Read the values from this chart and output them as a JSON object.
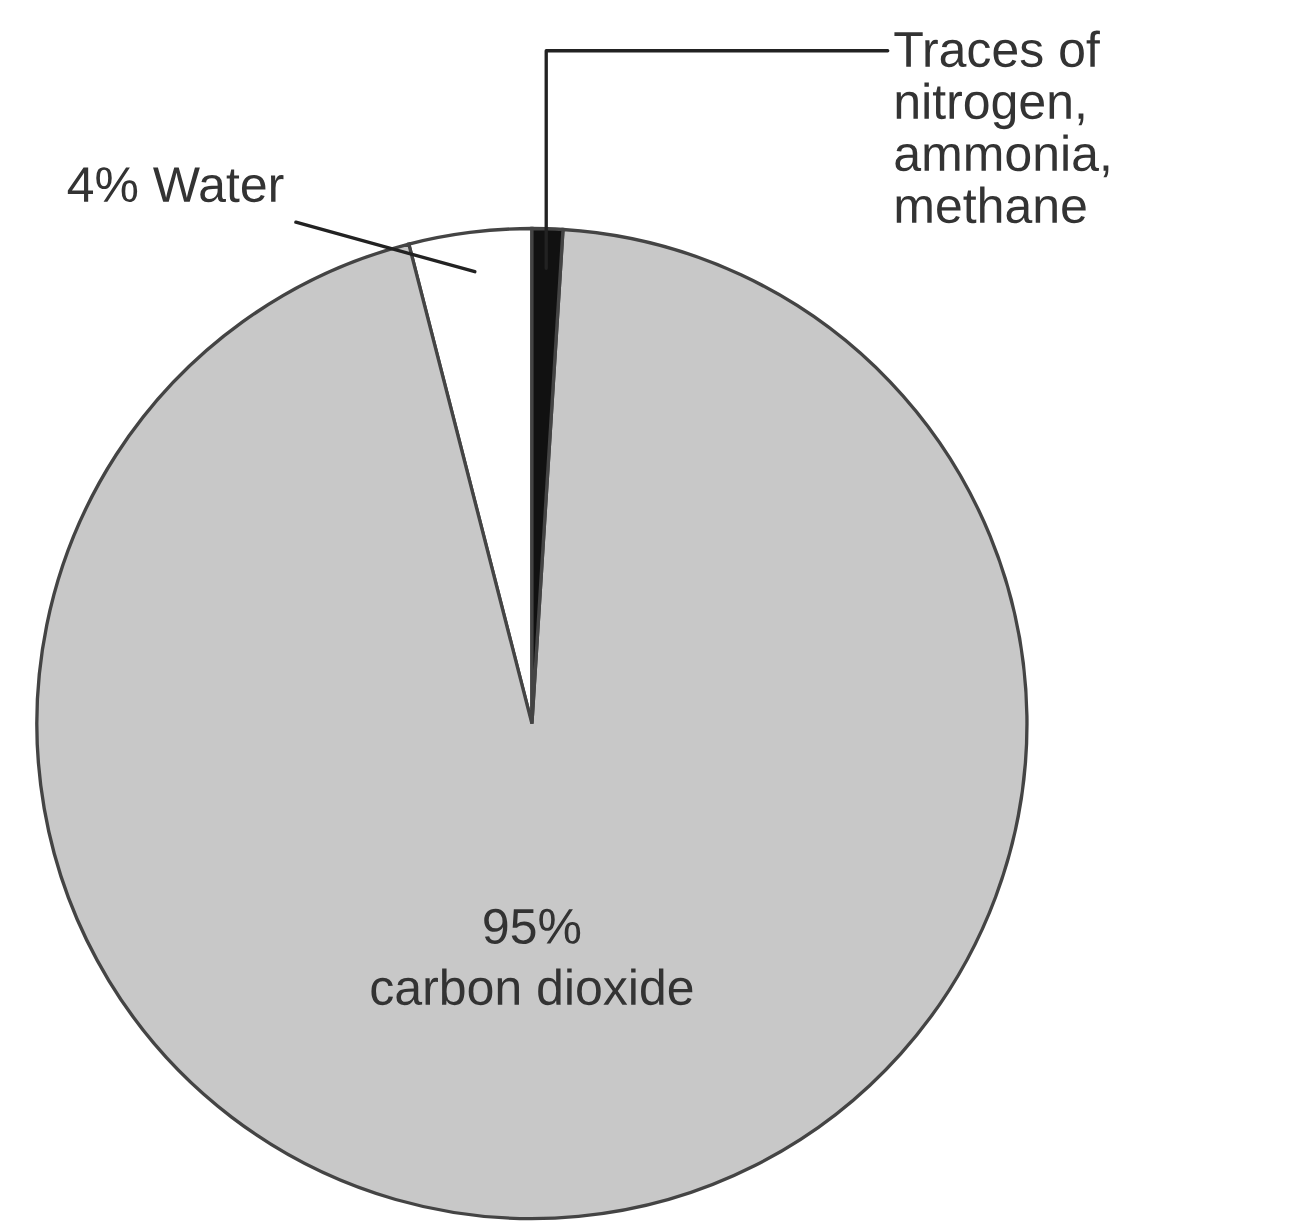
{
  "chart_data": {
    "type": "pie",
    "categories": [
      "Water",
      "carbon dioxide",
      "Traces of\nnitrogen,\nammonia,\nmethane"
    ],
    "values": [
      4,
      95,
      1
    ],
    "value_labels": [
      "4%",
      "95%",
      null
    ],
    "colors": [
      "#ffffff",
      "#c8c8c8",
      "#111111"
    ]
  }
}
